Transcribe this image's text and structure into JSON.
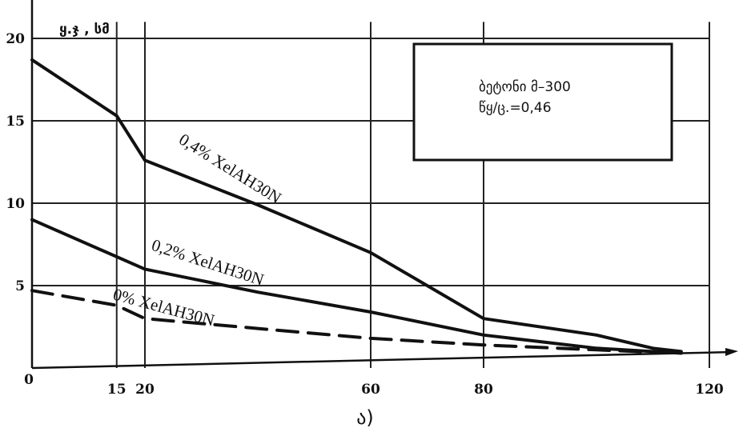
{
  "chart_data": {
    "type": "line",
    "ylabel": "ყ.ჯ , სმ",
    "xlim": [
      0,
      125
    ],
    "ylim": [
      0,
      21
    ],
    "x_ticks": [
      "0",
      "15",
      "20",
      "60",
      "80",
      "120"
    ],
    "y_ticks": [
      "20",
      "15",
      "10",
      "5"
    ],
    "grid": true,
    "annotation_box": {
      "line1": "ბეტონი მ–300",
      "line2": "წყ/ც.=0,46"
    },
    "series": [
      {
        "name": "0,4% XelAH30N",
        "style": "solid",
        "x": [
          0,
          15,
          20,
          40,
          60,
          80,
          100,
          110,
          115
        ],
        "y": [
          18.7,
          15.3,
          12.6,
          9.9,
          7.0,
          3.0,
          2.0,
          1.2,
          1.0
        ]
      },
      {
        "name": "0,2% XelAH30N",
        "style": "solid",
        "x": [
          0,
          20,
          40,
          60,
          80,
          100,
          115
        ],
        "y": [
          9.0,
          6.0,
          4.6,
          3.4,
          2.0,
          1.2,
          0.9
        ]
      },
      {
        "name": "0% XelAH30N",
        "style": "dashed",
        "x": [
          0,
          15,
          20,
          40,
          60,
          80,
          100,
          115
        ],
        "y": [
          4.7,
          3.8,
          3.0,
          2.4,
          1.8,
          1.4,
          1.1,
          0.9
        ]
      }
    ],
    "caption": "ა)"
  }
}
